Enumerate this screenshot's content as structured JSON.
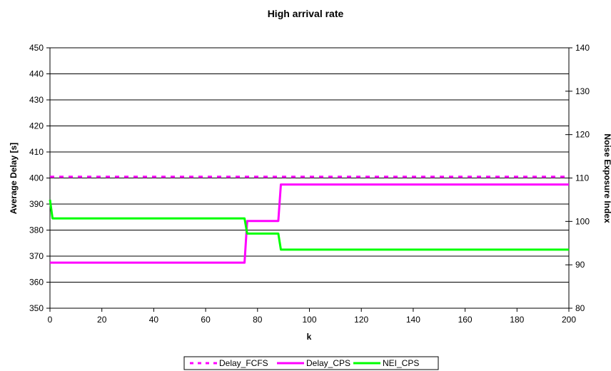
{
  "chart_data": {
    "type": "line",
    "title": "High arrival rate",
    "xlabel": "k",
    "ylabel": "Average Delay [s]",
    "y2label": "Noise Exposure Index",
    "xlim": [
      0,
      200
    ],
    "ylim": [
      350,
      450
    ],
    "y2lim": [
      80,
      140
    ],
    "xticks": [
      0,
      20,
      40,
      60,
      80,
      100,
      120,
      140,
      160,
      180,
      200
    ],
    "yticks": [
      350,
      360,
      370,
      380,
      390,
      400,
      410,
      420,
      430,
      440,
      450
    ],
    "y2ticks": [
      80,
      90,
      100,
      110,
      120,
      130,
      140
    ],
    "grid": "horizontal",
    "legend_position": "bottom",
    "series": [
      {
        "name": "Delay_FCFS",
        "axis": "left",
        "style": "dashed",
        "color": "#ff00ff",
        "points": [
          [
            0,
            400.5
          ],
          [
            200,
            400.5
          ]
        ]
      },
      {
        "name": "Delay_CPS",
        "axis": "left",
        "style": "solid",
        "color": "#ff00ff",
        "points": [
          [
            0,
            367.5
          ],
          [
            75,
            367.5
          ],
          [
            76,
            383.5
          ],
          [
            88,
            383.5
          ],
          [
            89,
            397.5
          ],
          [
            200,
            397.5
          ]
        ]
      },
      {
        "name": "NEI_CPS",
        "axis": "right",
        "style": "solid",
        "color": "#00ff00",
        "points": [
          [
            0,
            105
          ],
          [
            1,
            100.7
          ],
          [
            75,
            100.7
          ],
          [
            76,
            97.2
          ],
          [
            88,
            97.2
          ],
          [
            89,
            93.5
          ],
          [
            200,
            93.5
          ]
        ]
      }
    ]
  }
}
